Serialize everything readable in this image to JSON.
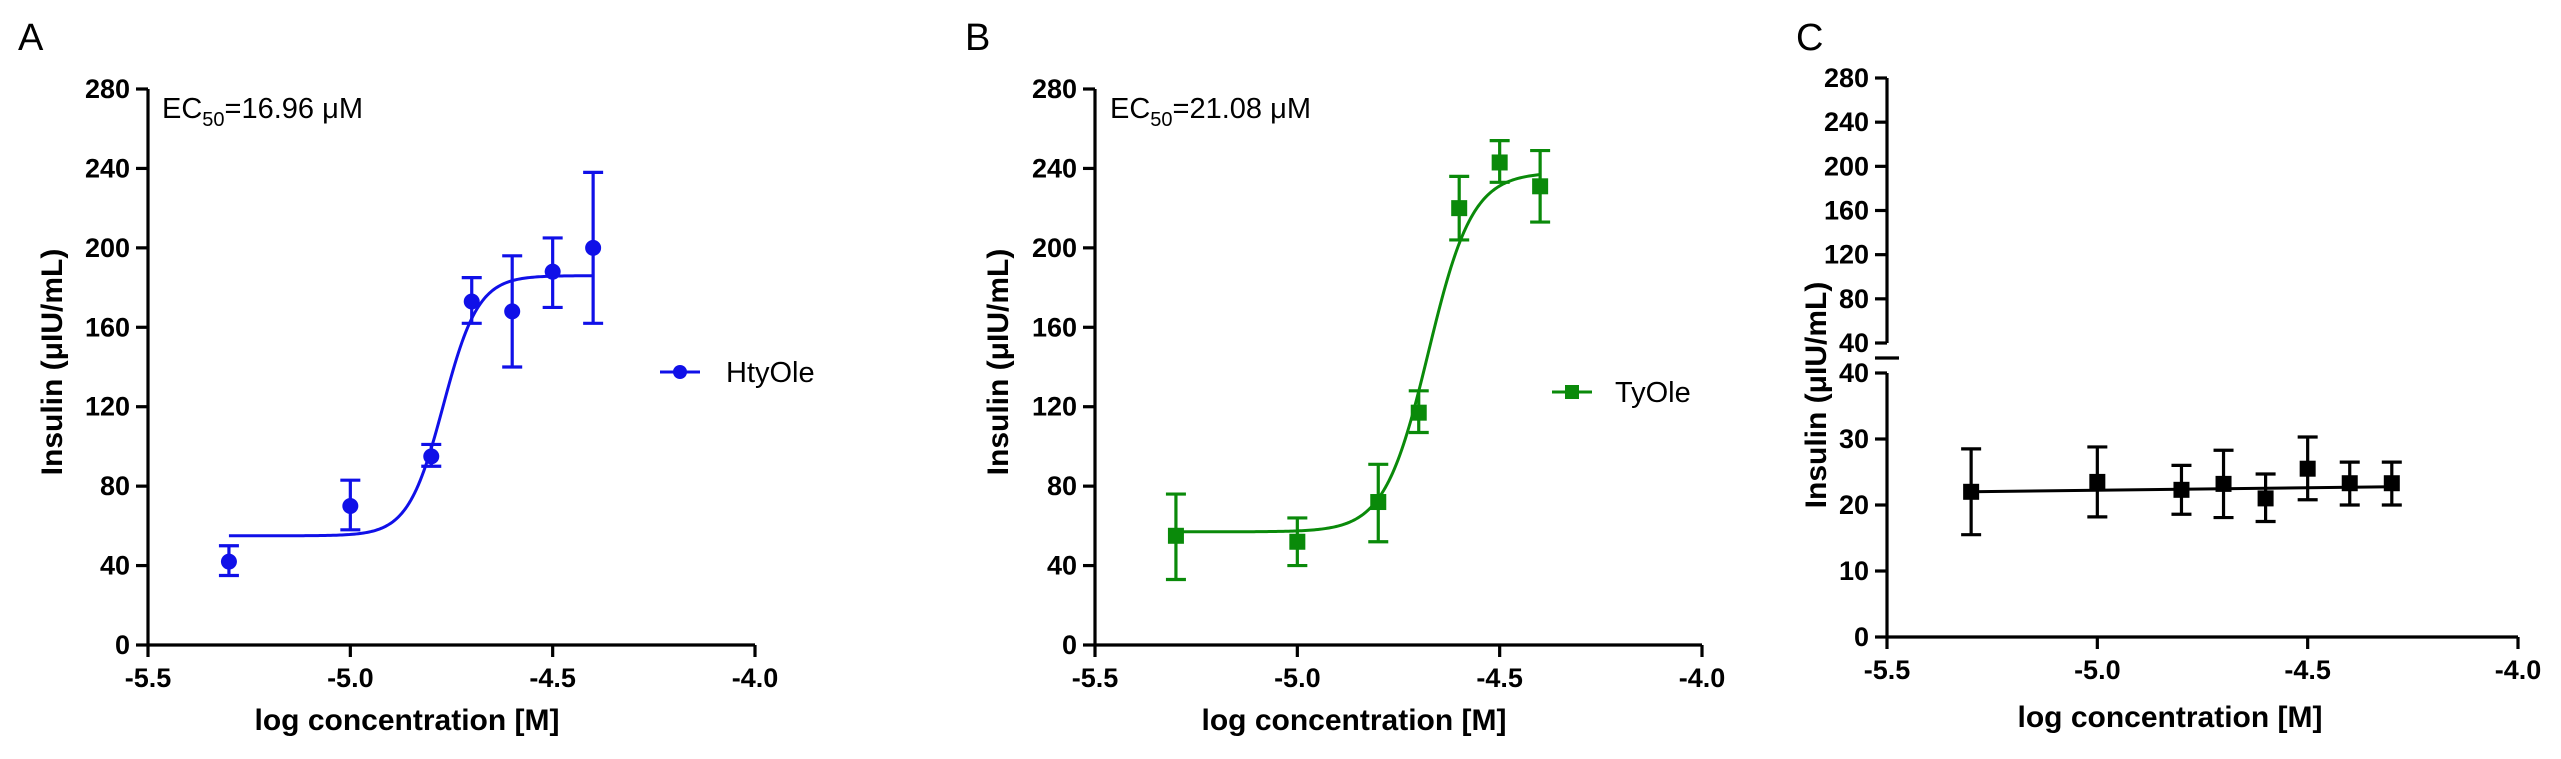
{
  "figure": {
    "panel_labels": [
      "A",
      "B",
      "C"
    ]
  },
  "chart_data": [
    {
      "type": "scatter",
      "panel": "A",
      "xlabel": "log concentration [M]",
      "ylabel": "Insulin (μIU/mL)",
      "xlim": [
        -5.5,
        -4.0
      ],
      "ylim": [
        0,
        280
      ],
      "xticks": [
        "-5.5",
        "-5.0",
        "-4.5",
        "-4.0"
      ],
      "xtick_values": [
        -5.5,
        -5.0,
        -4.5,
        -4.0
      ],
      "yticks": [
        "0",
        "40",
        "80",
        "120",
        "160",
        "200",
        "240",
        "280"
      ],
      "ytick_values": [
        0,
        40,
        80,
        120,
        160,
        200,
        240,
        280
      ],
      "annotation": {
        "prefix": "EC",
        "sub": "50",
        "suffix": "=16.96 μM"
      },
      "legend": "HtyOle",
      "color": "#1010e8",
      "marker": "circle",
      "x": [
        -5.3,
        -5.0,
        -4.8,
        -4.7,
        -4.6,
        -4.5,
        -4.4
      ],
      "y": [
        42,
        70,
        95,
        173,
        168,
        188,
        200
      ],
      "err_low": [
        35,
        58,
        90,
        162,
        140,
        170,
        162
      ],
      "err_high": [
        50,
        83,
        101,
        185,
        196,
        205,
        238
      ],
      "fit": {
        "bottom": 55,
        "top": 186,
        "logec50": -4.7705,
        "hill": 10
      }
    },
    {
      "type": "scatter",
      "panel": "B",
      "xlabel": "log concentration [M]",
      "ylabel": "Insulin (μIU/mL)",
      "xlim": [
        -5.5,
        -4.0
      ],
      "ylim": [
        0,
        280
      ],
      "xticks": [
        "-5.5",
        "-5.0",
        "-4.5",
        "-4.0"
      ],
      "xtick_values": [
        -5.5,
        -5.0,
        -4.5,
        -4.0
      ],
      "yticks": [
        "0",
        "40",
        "80",
        "120",
        "160",
        "200",
        "240",
        "280"
      ],
      "ytick_values": [
        0,
        40,
        80,
        120,
        160,
        200,
        240,
        280
      ],
      "annotation": {
        "prefix": "EC",
        "sub": "50",
        "suffix": "=21.08 μM"
      },
      "legend": "TyOle",
      "color": "#0a8a0a",
      "marker": "square",
      "x": [
        -5.3,
        -5.0,
        -4.8,
        -4.7,
        -4.6,
        -4.5,
        -4.4
      ],
      "y": [
        55,
        52,
        72,
        117,
        220,
        243,
        231
      ],
      "err_low": [
        33,
        40,
        52,
        107,
        204,
        233,
        213
      ],
      "err_high": [
        76,
        64,
        91,
        128,
        236,
        254,
        249
      ],
      "fit": {
        "bottom": 57,
        "top": 238,
        "logec50": -4.676,
        "hill": 8
      }
    },
    {
      "type": "scatter",
      "panel": "C",
      "xlabel": "log concentration [M]",
      "ylabel": "Insulin (μIU/mL)",
      "xlim": [
        -5.5,
        -4.0
      ],
      "ylim_lower": [
        0,
        40
      ],
      "ylim_upper": [
        40,
        280
      ],
      "xticks": [
        "-5.5",
        "-5.0",
        "-4.5",
        "-4.0"
      ],
      "xtick_values": [
        -5.5,
        -5.0,
        -4.5,
        -4.0
      ],
      "yticks_lower": [
        "0",
        "10",
        "20",
        "30",
        "40"
      ],
      "ytick_values_lower": [
        0,
        10,
        20,
        30,
        40
      ],
      "yticks_upper": [
        "40",
        "80",
        "120",
        "160",
        "200",
        "240",
        "280"
      ],
      "ytick_values_upper": [
        40,
        80,
        120,
        160,
        200,
        240,
        280
      ],
      "color": "#000000",
      "marker": "square",
      "x": [
        -5.3,
        -5.0,
        -4.8,
        -4.7,
        -4.6,
        -4.5,
        -4.4,
        -4.3
      ],
      "y": [
        22,
        23.5,
        22.3,
        23.2,
        21,
        25.5,
        23.3,
        23.3
      ],
      "err_low": [
        15.5,
        18.2,
        18.6,
        18.1,
        17.5,
        20.8,
        20,
        20
      ],
      "err_high": [
        28.5,
        28.8,
        26,
        28.3,
        24.7,
        30.3,
        26.5,
        26.5
      ],
      "fit": {
        "intercept": 26.05,
        "slope": 0.762
      }
    }
  ]
}
